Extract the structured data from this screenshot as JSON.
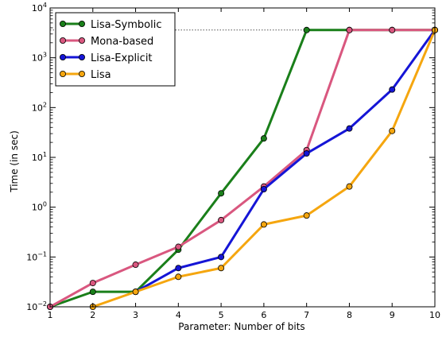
{
  "chart_data": {
    "type": "line",
    "xlabel": "Parameter: Number of bits",
    "ylabel": "Time (in sec)",
    "xlim": [
      1,
      10
    ],
    "ylim": [
      0.01,
      10000
    ],
    "yscale": "log",
    "x_ticks": [
      1,
      2,
      3,
      4,
      5,
      6,
      7,
      8,
      9,
      10
    ],
    "y_tick_values": [
      0.01,
      0.1,
      1,
      10,
      100,
      1000,
      10000
    ],
    "y_tick_labels": [
      {
        "base": "10",
        "exp": "−2"
      },
      {
        "base": "10",
        "exp": "−1"
      },
      {
        "base": "10",
        "exp": "0"
      },
      {
        "base": "10",
        "exp": "1"
      },
      {
        "base": "10",
        "exp": "2"
      },
      {
        "base": "10",
        "exp": "3"
      },
      {
        "base": "10",
        "exp": "4"
      }
    ],
    "timeout_line": 3600,
    "legend_position": "top-left",
    "series": [
      {
        "name": "Lisa-Symbolic",
        "color": "#1a7f1a",
        "x": [
          1,
          2,
          3,
          4,
          5,
          6,
          7,
          8,
          9,
          10
        ],
        "values": [
          0.01,
          0.02,
          0.02,
          0.14,
          1.9,
          24,
          3600,
          3600,
          3600,
          3600
        ]
      },
      {
        "name": "Mona-based",
        "color": "#d9577f",
        "x": [
          1,
          2,
          3,
          4,
          5,
          6,
          7,
          8,
          9,
          10
        ],
        "values": [
          0.01,
          0.03,
          0.07,
          0.16,
          0.55,
          2.6,
          14,
          3600,
          3600,
          3600
        ]
      },
      {
        "name": "Lisa-Explicit",
        "color": "#1515d6",
        "x": [
          3,
          4,
          5,
          6,
          7,
          8,
          9,
          10
        ],
        "values": [
          0.02,
          0.06,
          0.1,
          2.3,
          12,
          38,
          230,
          3600
        ]
      },
      {
        "name": "Lisa",
        "color": "#f5a60f",
        "x": [
          2,
          3,
          4,
          5,
          6,
          7,
          8,
          9,
          10
        ],
        "values": [
          0.01,
          0.02,
          0.04,
          0.06,
          0.45,
          0.68,
          2.6,
          34,
          3600
        ]
      }
    ]
  }
}
